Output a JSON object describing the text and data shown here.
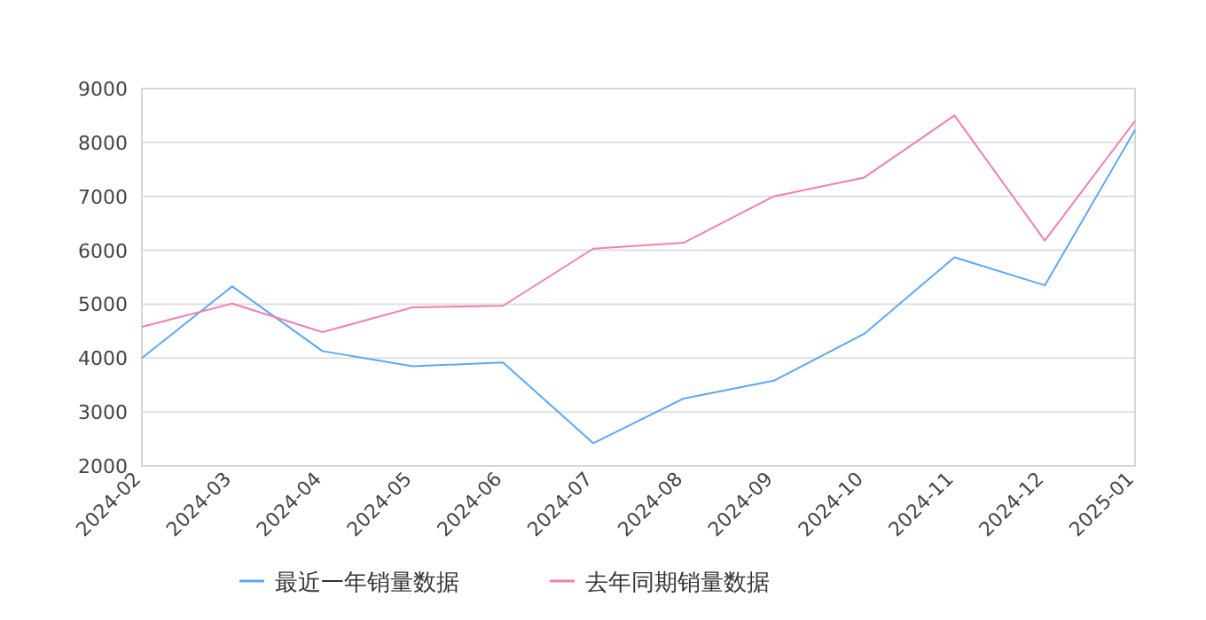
{
  "chart_data": {
    "type": "line",
    "categories": [
      "2024-02",
      "2024-03",
      "2024-04",
      "2024-05",
      "2024-06",
      "2024-07",
      "2024-08",
      "2024-09",
      "2024-10",
      "2024-11",
      "2024-12",
      "2025-01"
    ],
    "series": [
      {
        "name": "最近一年销量数据",
        "color": "#5ba8f5",
        "values": [
          4000,
          5330,
          4130,
          3850,
          3920,
          2420,
          3250,
          3580,
          4450,
          5870,
          5350,
          8230
        ]
      },
      {
        "name": "去年同期销量数据",
        "color": "#f17fb3",
        "values": [
          4580,
          5010,
          4480,
          4940,
          4970,
          6030,
          6140,
          7000,
          7350,
          8500,
          6180,
          8400
        ]
      }
    ],
    "ylim": [
      2000,
      9000
    ],
    "yticks": [
      2000,
      3000,
      4000,
      5000,
      6000,
      7000,
      8000,
      9000
    ],
    "grid": "y",
    "legend": "bottom",
    "marker": "none",
    "line_style": "solid"
  }
}
